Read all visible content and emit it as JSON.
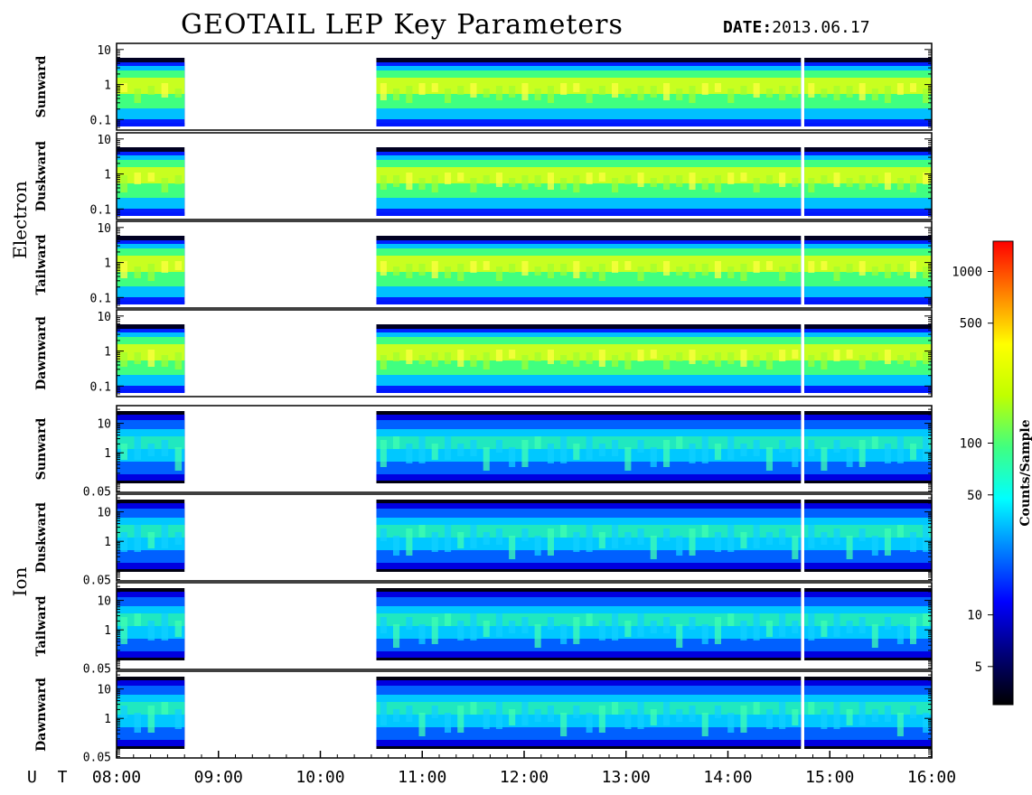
{
  "title": "GEOTAIL LEP Key Parameters",
  "date_label": "DATE:",
  "date_value": "2013.06.17",
  "colorbar": {
    "label": "Counts/Sample",
    "ticks": [
      {
        "value": 1000,
        "label": "1000"
      },
      {
        "value": 500,
        "label": "500"
      },
      {
        "value": 100,
        "label": "100"
      },
      {
        "value": 50,
        "label": "50"
      },
      {
        "value": 10,
        "label": "10"
      },
      {
        "value": 5,
        "label": "5"
      }
    ],
    "range": [
      3,
      1500
    ],
    "scale": "log",
    "colormap": [
      "#000000",
      "#00007a",
      "#0000ff",
      "#0080ff",
      "#00ffff",
      "#40ff80",
      "#c0ff00",
      "#ffff00",
      "#ff8000",
      "#ff0000"
    ]
  },
  "x_axis": {
    "ut_label": "U T",
    "ticks": [
      "08:00",
      "09:00",
      "10:00",
      "11:00",
      "12:00",
      "13:00",
      "14:00",
      "15:00",
      "16:00"
    ]
  },
  "groups": [
    {
      "name": "Electron",
      "species": "electron"
    },
    {
      "name": "Ion",
      "species": "ion"
    }
  ],
  "chart_data": {
    "type": "heatmap",
    "x_range": [
      "08:00",
      "16:00"
    ],
    "data_gaps": [
      {
        "start": "08:40",
        "end": "10:33"
      },
      {
        "start": "14:43",
        "end": "14:45"
      }
    ],
    "panels": [
      {
        "group": "Electron",
        "direction": "Sunward",
        "y_scale": "log",
        "y_range": [
          0.05,
          15
        ],
        "y_ticks": [
          {
            "value": 0.1,
            "label": "0.1"
          },
          {
            "value": 1,
            "label": "1"
          },
          {
            "value": 10,
            "label": "10"
          }
        ]
      },
      {
        "group": "Electron",
        "direction": "Duskward",
        "y_scale": "log",
        "y_range": [
          0.05,
          15
        ],
        "y_ticks": [
          {
            "value": 0.1,
            "label": "0.1"
          },
          {
            "value": 1,
            "label": "1"
          },
          {
            "value": 10,
            "label": "10"
          }
        ]
      },
      {
        "group": "Electron",
        "direction": "Tailward",
        "y_scale": "log",
        "y_range": [
          0.05,
          15
        ],
        "y_ticks": [
          {
            "value": 0.1,
            "label": "0.1"
          },
          {
            "value": 1,
            "label": "1"
          },
          {
            "value": 10,
            "label": "10"
          }
        ]
      },
      {
        "group": "Electron",
        "direction": "Dawnward",
        "y_scale": "log",
        "y_range": [
          0.05,
          15
        ],
        "y_ticks": [
          {
            "value": 0.1,
            "label": "0.1"
          },
          {
            "value": 1,
            "label": "1"
          },
          {
            "value": 10,
            "label": "10"
          }
        ]
      },
      {
        "group": "Ion",
        "direction": "Sunward",
        "y_scale": "log",
        "y_range": [
          0.045,
          40
        ],
        "y_ticks": [
          {
            "value": 0.05,
            "label": "0.05"
          },
          {
            "value": 1,
            "label": "1"
          },
          {
            "value": 10,
            "label": "10"
          }
        ]
      },
      {
        "group": "Ion",
        "direction": "Duskward",
        "y_scale": "log",
        "y_range": [
          0.045,
          40
        ],
        "y_ticks": [
          {
            "value": 0.05,
            "label": "0.05"
          },
          {
            "value": 1,
            "label": "1"
          },
          {
            "value": 10,
            "label": "10"
          }
        ]
      },
      {
        "group": "Ion",
        "direction": "Tailward",
        "y_scale": "log",
        "y_range": [
          0.045,
          40
        ],
        "y_ticks": [
          {
            "value": 0.05,
            "label": "0.05"
          },
          {
            "value": 1,
            "label": "1"
          },
          {
            "value": 10,
            "label": "10"
          }
        ]
      },
      {
        "group": "Ion",
        "direction": "Dawnward",
        "y_scale": "log",
        "y_range": [
          0.045,
          40
        ],
        "y_ticks": [
          {
            "value": 0.05,
            "label": "0.05"
          },
          {
            "value": 1,
            "label": "1"
          },
          {
            "value": 10,
            "label": "10"
          }
        ]
      }
    ]
  }
}
